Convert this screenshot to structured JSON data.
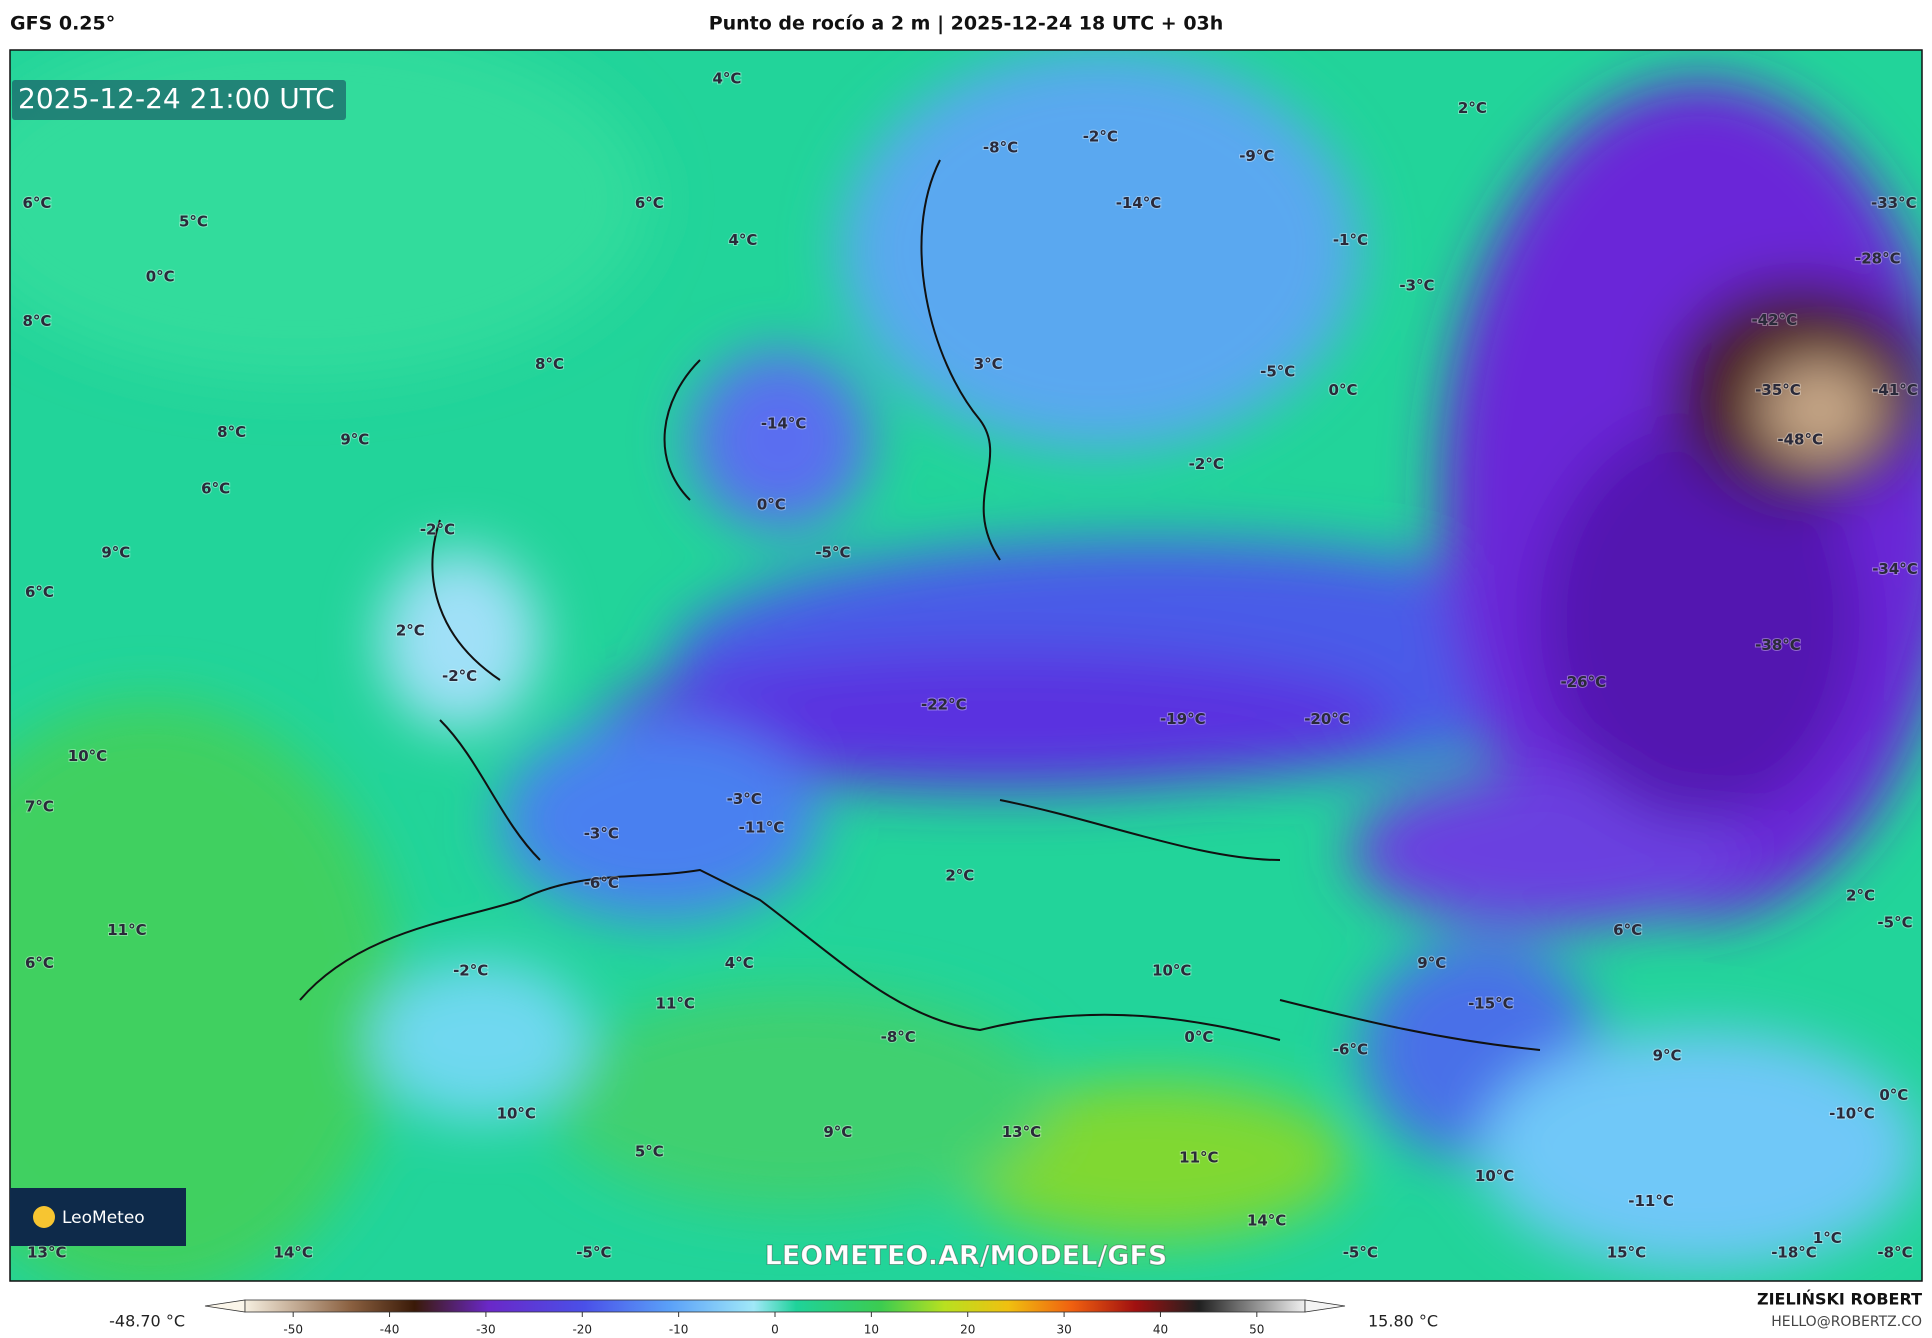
{
  "header": {
    "model": "GFS 0.25°",
    "title": "Punto de rocío a 2 m | 2025-12-24 18 UTC + 03h"
  },
  "map": {
    "timestamp": "2025-12-24 21:00 UTC",
    "watermark": "LEOMETEO.AR/MODEL/GFS",
    "logo": "LeoMeteo",
    "labels": [
      "4°C",
      "-8°C",
      "-2°C",
      "-9°C",
      "2°C",
      "-33°C",
      "6°C",
      "5°C",
      "6°C",
      "4°C",
      "-14°C",
      "-1°C",
      "-28°C",
      "0°C",
      "-3°C",
      "8°C",
      "-42°C",
      "8°C",
      "3°C",
      "-5°C",
      "0°C",
      "-35°C",
      "-41°C",
      "8°C",
      "9°C",
      "-14°C",
      "-48°C",
      "-2°C",
      "6°C",
      "0°C",
      "-2°C",
      "9°C",
      "-5°C",
      "-34°C",
      "6°C",
      "2°C",
      "-38°C",
      "-2°C",
      "-26°C",
      "-22°C",
      "-19°C",
      "-20°C",
      "10°C",
      "7°C",
      "-3°C",
      "-11°C",
      "-3°C",
      "-6°C",
      "2°C",
      "2°C",
      "-5°C",
      "11°C",
      "6°C",
      "6°C",
      "-2°C",
      "4°C",
      "10°C",
      "9°C",
      "-15°C",
      "11°C",
      "-8°C",
      "0°C",
      "-6°C",
      "9°C",
      "0°C",
      "-10°C",
      "10°C",
      "9°C",
      "13°C",
      "11°C",
      "5°C",
      "10°C",
      "-11°C",
      "14°C",
      "1°C",
      "14°C",
      "13°C",
      "-5°C",
      "-5°C",
      "15°C",
      "-18°C",
      "-8°C"
    ]
  },
  "colorbar": {
    "min_label": "-48.70 °C",
    "max_label": "15.80 °C",
    "xlim": [
      -55,
      55
    ],
    "ticks": [
      -50,
      -40,
      -30,
      -20,
      -10,
      0,
      10,
      20,
      30,
      40,
      50
    ]
  },
  "footer": {
    "author": "ZIELIŃSKI ROBERT",
    "email": "HELLO@ROBERTZ.CO"
  }
}
